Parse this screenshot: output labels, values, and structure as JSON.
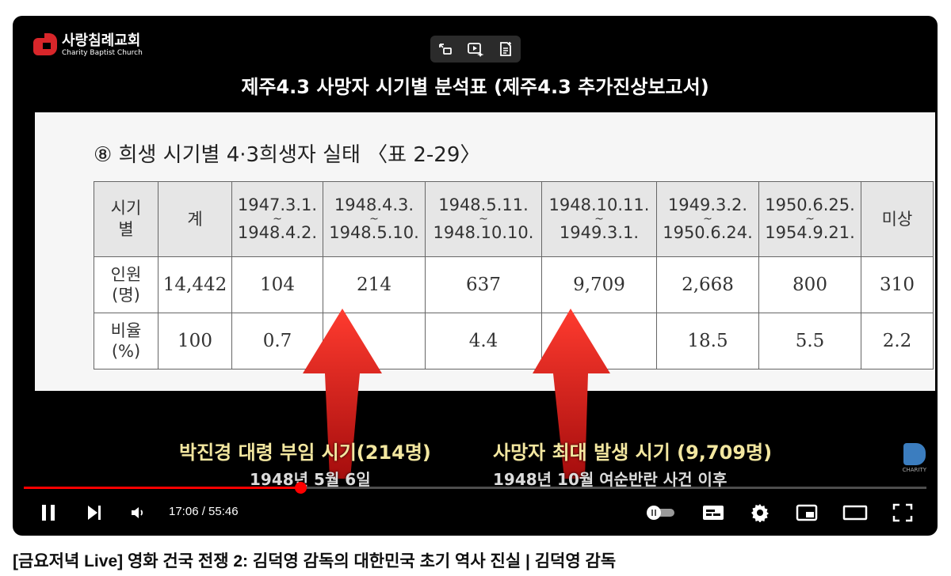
{
  "channel_logo": {
    "ko": "사랑침례교회",
    "en": "Charity Baptist Church"
  },
  "slide": {
    "title": "제주4.3 사망자 시기별 분석표 (제주4.3 추가진상보고서)",
    "heading": "⑧ 희생 시기별 4·3희생자 실태 〈표 2-29〉",
    "table": {
      "header_first": {
        "line1": "시기",
        "line2": "별"
      },
      "header_total": "계",
      "periods": [
        {
          "from": "1947.3.1.",
          "to": "1948.4.2."
        },
        {
          "from": "1948.4.3.",
          "to": "1948.5.10."
        },
        {
          "from": "1948.5.11.",
          "to": "1948.10.10."
        },
        {
          "from": "1948.10.11.",
          "to": "1949.3.1."
        },
        {
          "from": "1949.3.2.",
          "to": "1950.6.24."
        },
        {
          "from": "1950.6.25.",
          "to": "1954.9.21."
        }
      ],
      "header_unknown": "미상",
      "tilde": "~",
      "rows": [
        {
          "label1": "인원",
          "label2": "(명)",
          "values": [
            "14,442",
            "104",
            "214",
            "637",
            "9,709",
            "2,668",
            "800",
            "310"
          ]
        },
        {
          "label1": "비율",
          "label2": "(%)",
          "values": [
            "100",
            "0.7",
            "",
            "4.4",
            "",
            "18.5",
            "5.5",
            "2.2"
          ]
        }
      ]
    },
    "captions": [
      {
        "main": "박진경 대령 부임 시기(214명)",
        "sub": "1948년 5월 6일"
      },
      {
        "main": "사망자 최대 발생 시기 (9,709명)",
        "sub": "1948년 10월 여순반란 사건 이후"
      }
    ],
    "watermark": "CHARITY"
  },
  "player": {
    "current_time": "17:06",
    "duration": "55:46",
    "time_display": "17:06 / 55:46",
    "progress": 0.3067,
    "accent_color": "#ff0000"
  },
  "video_title": "[금요저녁 Live] 영화 건국 전쟁 2: 김덕영 감독의 대한민국 초기 역사 진실 | 김덕영 감독"
}
